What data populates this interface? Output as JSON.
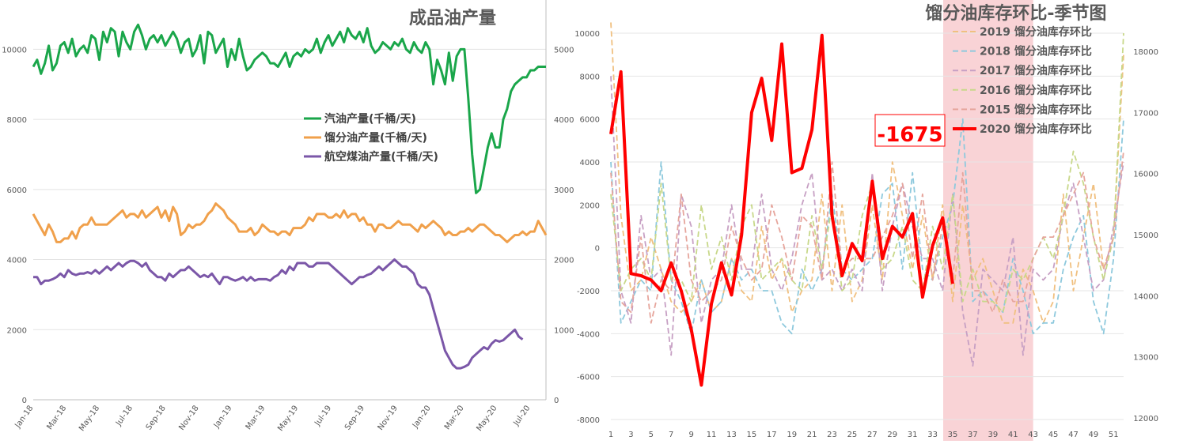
{
  "colors": {
    "gasoline": "#1aa64a",
    "distillate": "#f0a04b",
    "jet": "#7b57a8",
    "season_2020": "#ff0000",
    "season_2019": "#f0c080",
    "season_2018": "#8ec9dd",
    "season_2017": "#c7a0c4",
    "season_2016": "#c8d88a",
    "season_2015": "#e6a59c",
    "highlight": "#f9d3d6"
  },
  "chart_data": [
    {
      "type": "line",
      "title": "成品油产量",
      "x_tick_labels": [
        "Jan-18",
        "Mar-18",
        "May-18",
        "Jul-18",
        "Sep-18",
        "Nov-18",
        "Jan-19",
        "Mar-19",
        "May-19",
        "Jul-19",
        "Sep-19",
        "Nov-19",
        "Jan-20",
        "Mar-20",
        "May-20",
        "Jul-20"
      ],
      "y_left_ticks": [
        "0",
        "2000",
        "4000",
        "6000",
        "8000",
        "10000"
      ],
      "y_right_ticks": [
        "0",
        "1000",
        "2000",
        "3000",
        "4000",
        "5000"
      ],
      "ylim_left": [
        0,
        11000
      ],
      "ylim_right": [
        0,
        5500
      ],
      "grid": true,
      "legend_position": "center",
      "series": [
        {
          "name": "汽油产量(千桶/天)",
          "axis": "left",
          "color_key": "gasoline",
          "values": [
            9500,
            9700,
            9300,
            9600,
            10100,
            9400,
            9600,
            10100,
            10200,
            9900,
            10300,
            9800,
            10000,
            10100,
            9900,
            10400,
            10300,
            9700,
            10500,
            10200,
            10600,
            10500,
            9800,
            10500,
            10200,
            10000,
            10500,
            10700,
            10400,
            10000,
            10300,
            10400,
            10200,
            10400,
            10100,
            10300,
            10500,
            10300,
            9900,
            10200,
            10300,
            9800,
            10000,
            10400,
            9600,
            10500,
            10400,
            9900,
            10100,
            10300,
            9500,
            10000,
            9700,
            10300,
            9800,
            9400,
            9500,
            9700,
            9800,
            9900,
            9800,
            9600,
            9600,
            9500,
            9700,
            9900,
            9500,
            9800,
            9900,
            9800,
            10000,
            9900,
            10000,
            10300,
            9900,
            10200,
            10400,
            10100,
            10300,
            10500,
            10200,
            10600,
            10400,
            10300,
            10500,
            10200,
            10600,
            10100,
            9900,
            10000,
            10200,
            10100,
            10000,
            10200,
            10100,
            10300,
            10000,
            9900,
            10200,
            10000,
            9900,
            10200,
            10000,
            9000,
            9700,
            9400,
            9000,
            9900,
            9100,
            9800,
            10000,
            10000,
            8600,
            7000,
            5900,
            6000,
            6600,
            7200,
            7600,
            7200,
            7200,
            8000,
            8300,
            8800,
            9000,
            9100,
            9200,
            9200,
            9400,
            9400,
            9500,
            9500,
            9500
          ]
        },
        {
          "name": "馏分油产量(千桶/天)",
          "axis": "left",
          "color_key": "distillate",
          "values": [
            5300,
            5100,
            4900,
            4700,
            5000,
            4800,
            4500,
            4500,
            4600,
            4600,
            4800,
            4600,
            4900,
            5000,
            5000,
            5200,
            5000,
            5000,
            5000,
            5000,
            5100,
            5200,
            5300,
            5400,
            5200,
            5300,
            5300,
            5200,
            5400,
            5200,
            5300,
            5400,
            5500,
            5200,
            5400,
            5100,
            5500,
            5300,
            4700,
            4800,
            5000,
            4900,
            5000,
            5000,
            5100,
            5300,
            5400,
            5600,
            5500,
            5400,
            5200,
            5100,
            5000,
            4800,
            4800,
            4800,
            4900,
            4700,
            4800,
            5000,
            4900,
            4800,
            4800,
            4700,
            4800,
            4800,
            4700,
            4900,
            4900,
            4900,
            5000,
            5200,
            5100,
            5300,
            5300,
            5300,
            5200,
            5200,
            5300,
            5200,
            5400,
            5200,
            5300,
            5300,
            5100,
            5200,
            5000,
            5000,
            4800,
            5000,
            5000,
            4900,
            4900,
            5000,
            5100,
            5000,
            5000,
            5000,
            4900,
            4800,
            5000,
            4900,
            5000,
            5100,
            5000,
            4900,
            4700,
            4800,
            4700,
            4700,
            4800,
            4800,
            4900,
            4800,
            4900,
            5000,
            5000,
            4900,
            4800,
            4700,
            4700,
            4600,
            4500,
            4600,
            4700,
            4700,
            4800,
            4700,
            4800,
            4800,
            5100,
            4900,
            4700
          ]
        },
        {
          "name": "航空煤油产量(千桶/天)",
          "axis": "right",
          "color_key": "jet",
          "values": [
            1750,
            1750,
            1650,
            1700,
            1700,
            1720,
            1750,
            1800,
            1750,
            1850,
            1800,
            1780,
            1800,
            1800,
            1820,
            1800,
            1850,
            1800,
            1850,
            1900,
            1850,
            1900,
            1950,
            1900,
            1950,
            1980,
            1980,
            1950,
            1900,
            1950,
            1850,
            1800,
            1750,
            1750,
            1700,
            1800,
            1750,
            1800,
            1850,
            1850,
            1900,
            1850,
            1800,
            1750,
            1780,
            1750,
            1800,
            1720,
            1650,
            1750,
            1750,
            1720,
            1700,
            1720,
            1750,
            1700,
            1750,
            1700,
            1720,
            1720,
            1720,
            1700,
            1750,
            1780,
            1850,
            1800,
            1900,
            1850,
            1950,
            1950,
            1950,
            1900,
            1900,
            1950,
            1950,
            1950,
            1950,
            1900,
            1850,
            1800,
            1750,
            1700,
            1650,
            1700,
            1750,
            1750,
            1780,
            1800,
            1850,
            1900,
            1850,
            1900,
            1950,
            2000,
            1950,
            1900,
            1900,
            1850,
            1800,
            1650,
            1600,
            1600,
            1500,
            1300,
            1100,
            900,
            700,
            600,
            500,
            450,
            450,
            470,
            500,
            600,
            650,
            700,
            750,
            720,
            800,
            850,
            830,
            850,
            900,
            950,
            1000,
            900,
            860
          ]
        }
      ]
    },
    {
      "type": "line",
      "title": "馏分油库存环比-季节图",
      "x_tick_labels": [
        "1",
        "3",
        "5",
        "7",
        "9",
        "11",
        "13",
        "15",
        "17",
        "19",
        "21",
        "23",
        "25",
        "27",
        "29",
        "31",
        "33",
        "35",
        "37",
        "39",
        "41",
        "43",
        "45",
        "47",
        "49",
        "51"
      ],
      "y_left_ticks": [
        "-8000",
        "-6000",
        "-4000",
        "-2000",
        "0",
        "2000",
        "4000",
        "6000",
        "8000",
        "10000"
      ],
      "y_right_ticks": [
        "12000",
        "13000",
        "14000",
        "15000",
        "16000",
        "17000",
        "18000"
      ],
      "ylim_left": [
        -8000,
        10000
      ],
      "highlight_weeks": [
        35,
        43
      ],
      "annotation": "-1675",
      "grid": true,
      "legend_position": "top-right",
      "series": [
        {
          "name": "2019 馏分油库存环比",
          "color_key": "season_2019",
          "dashed": true,
          "values": [
            10500,
            1500,
            -2000,
            -1500,
            500,
            -1000,
            -2500,
            -3000,
            -2500,
            -1500,
            -3000,
            -2500,
            -500,
            -2000,
            -2500,
            1000,
            -1500,
            -500,
            -3000,
            -2000,
            -1500,
            2500,
            -2000,
            2000,
            -2500,
            -1500,
            2000,
            -1500,
            4000,
            1500,
            -1000,
            1500,
            -1500,
            2000,
            -2500,
            2000,
            -1500,
            -500,
            -2000,
            -3500,
            -3500,
            -1000,
            -2000,
            -3500,
            -2500,
            2500,
            -2000,
            500,
            3000,
            -1000,
            500,
            9000
          ]
        },
        {
          "name": "2018 馏分油库存环比",
          "color_key": "season_2018",
          "dashed": true,
          "values": [
            4000,
            -3500,
            -2500,
            -1500,
            -2000,
            4000,
            -1500,
            -2500,
            -4000,
            -1500,
            -3000,
            -2500,
            -500,
            -1500,
            -1000,
            -2000,
            -2000,
            -3500,
            -4000,
            -1000,
            -2000,
            -1000,
            2500,
            -1000,
            -1500,
            -1000,
            -500,
            2500,
            3000,
            -1000,
            3500,
            -1000,
            -1500,
            500,
            2000,
            6000,
            -2500,
            -2000,
            -2500,
            -3000,
            -500,
            -2000,
            -4000,
            -3500,
            -3500,
            -1000,
            500,
            1500,
            -2500,
            -4000,
            -500,
            6000
          ]
        },
        {
          "name": "2017 馏分油库存环比",
          "color_key": "season_2017",
          "dashed": true,
          "values": [
            8000,
            -2000,
            -3500,
            1500,
            -1500,
            -1000,
            -5000,
            2500,
            1000,
            -3500,
            -1500,
            -1000,
            2000,
            -1000,
            -1000,
            2500,
            -1000,
            -2000,
            -500,
            2000,
            3500,
            -1500,
            -1000,
            -2000,
            -1000,
            -2000,
            3500,
            -2000,
            1000,
            3000,
            1000,
            -500,
            -500,
            -2000,
            2500,
            -3000,
            -5500,
            -1000,
            -1500,
            -2000,
            500,
            -5000,
            -1000,
            -1500,
            -1000,
            1500,
            3000,
            500,
            -2000,
            -1500,
            1000,
            4000
          ]
        },
        {
          "name": "2016 馏分油库存环比",
          "color_key": "season_2016",
          "dashed": true,
          "values": [
            2500,
            -2000,
            -1000,
            -500,
            -1500,
            3000,
            -1500,
            -1500,
            -2500,
            2000,
            -1000,
            500,
            -1500,
            1000,
            2000,
            -1500,
            -1000,
            -500,
            -1500,
            -2000,
            1500,
            -1000,
            2000,
            -2000,
            -1500,
            1500,
            3000,
            -1000,
            -500,
            1000,
            -1500,
            -2000,
            1000,
            -1000,
            2500,
            -2500,
            -1000,
            -2500,
            -2500,
            -3000,
            -1000,
            -1500,
            -500,
            500,
            -500,
            1500,
            4500,
            3000,
            500,
            -1500,
            500,
            10000
          ]
        },
        {
          "name": "2015 馏分油库存环比",
          "color_key": "season_2015",
          "dashed": true,
          "values": [
            3500,
            -2500,
            -3000,
            500,
            -3500,
            -1500,
            -2000,
            2500,
            -1500,
            -2500,
            -2000,
            -1500,
            1000,
            -500,
            -1500,
            -1000,
            2000,
            500,
            -1500,
            1500,
            1000,
            -1500,
            4000,
            -1000,
            -500,
            -500,
            -500,
            500,
            1500,
            3000,
            -500,
            2500,
            -1500,
            1000,
            -1500,
            3500,
            -2000,
            -2000,
            -3000,
            -1500,
            -2500,
            -2500,
            -500,
            500,
            500,
            1500,
            2500,
            3500,
            500,
            -1000,
            500,
            4500
          ]
        },
        {
          "name": "2020 馏分油库存环比",
          "color_key": "season_2020",
          "dashed": false,
          "values": [
            5300,
            8200,
            -1200,
            -1300,
            -1500,
            -2000,
            -700,
            -2000,
            -3800,
            -6400,
            -2600,
            -700,
            -2200,
            600,
            6300,
            7900,
            5000,
            9500,
            3500,
            3700,
            5500,
            9900,
            1500,
            -1300,
            200,
            -600,
            3100,
            -500,
            1000,
            500,
            1600,
            -2300,
            100,
            1400,
            -1675
          ]
        }
      ]
    }
  ]
}
